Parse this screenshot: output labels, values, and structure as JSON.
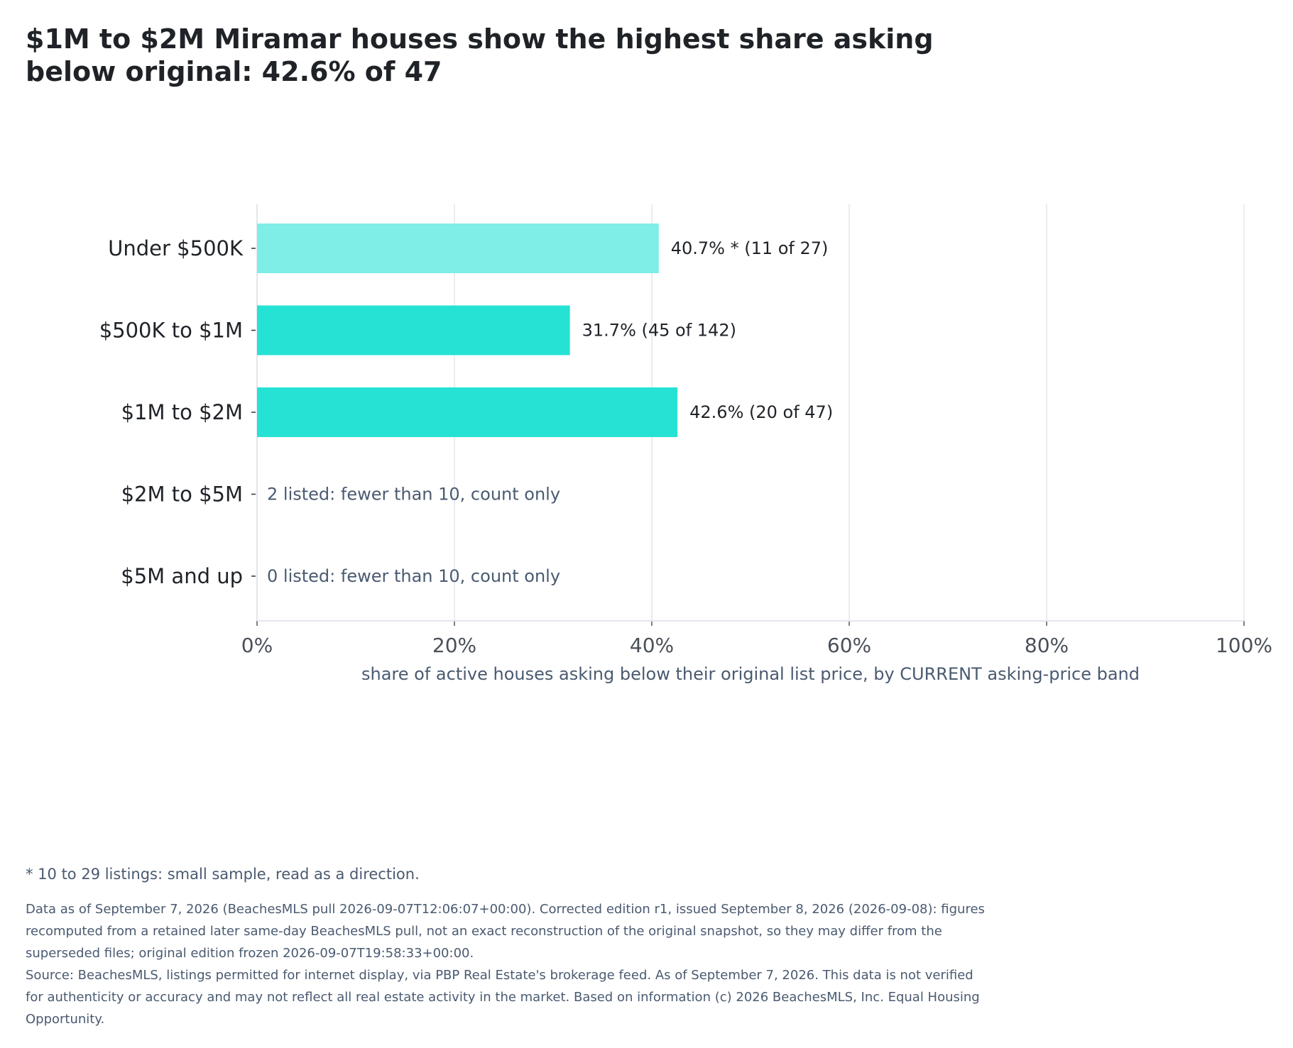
{
  "title": "$1M to $2M Miramar houses show the highest share asking below original: 42.6% of 47",
  "chart_data": {
    "type": "bar",
    "orientation": "horizontal",
    "categories": [
      "Under $500K",
      "$500K to $1M",
      "$1M to $2M",
      "$2M to $5M",
      "$5M and up"
    ],
    "values": [
      40.7,
      31.7,
      42.6,
      null,
      null
    ],
    "counts": [
      [
        11,
        27
      ],
      [
        45,
        142
      ],
      [
        20,
        47
      ],
      [
        null,
        2
      ],
      [
        null,
        0
      ]
    ],
    "bar_labels": [
      "40.7% *  (11 of 27)",
      "31.7%  (45 of 142)",
      "42.6%  (20 of 47)",
      "",
      ""
    ],
    "note_labels": [
      "",
      "",
      "",
      "2 listed: fewer than 10, count only",
      "0 listed: fewer than 10, count only"
    ],
    "bar_colors": [
      "#7eeee6",
      "#26e2d4",
      "#26e2d4",
      null,
      null
    ],
    "xlabel": "share of active houses asking below their original list price, by CURRENT asking-price band",
    "ylabel": "",
    "xlim": [
      0,
      100
    ],
    "x_ticks": [
      0,
      20,
      40,
      60,
      80,
      100
    ],
    "x_tick_labels": [
      "0%",
      "20%",
      "40%",
      "60%",
      "80%",
      "100%"
    ],
    "grid": true,
    "grid_color": "#e4e6ee"
  },
  "footnote": "* 10 to 29 listings: small sample, read as a direction.",
  "notes": [
    "Data as of September 7, 2026 (BeachesMLS pull 2026-09-07T12:06:07+00:00). Corrected edition r1, issued September 8, 2026 (2026-09-08): figures recomputed from a retained later same-day BeachesMLS pull, not an exact reconstruction of the original snapshot, so they may differ from the superseded files; original edition frozen 2026-09-07T19:58:33+00:00.",
    "Source: BeachesMLS, listings permitted for internet display, via PBP Real Estate's brokerage feed. As of September 7, 2026. This data is not verified for authenticity or accuracy and may not reflect all real estate activity in the market. Based on information (c) 2026 BeachesMLS, Inc. Equal Housing Opportunity."
  ]
}
